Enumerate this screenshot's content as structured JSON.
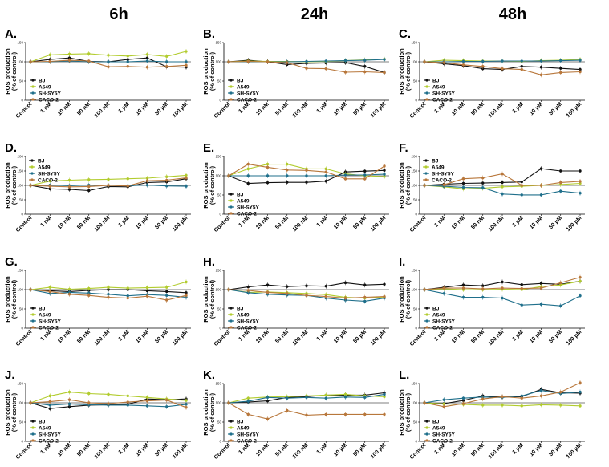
{
  "figure": {
    "column_titles": [
      "6h",
      "24h",
      "48h"
    ]
  },
  "series_meta": [
    {
      "name": "BJ",
      "color": "#111111"
    },
    {
      "name": "A549",
      "color": "#b2cc2e"
    },
    {
      "name": "SH-SY5Y",
      "color": "#1f6f8b"
    },
    {
      "name": "CACO-2",
      "color": "#b8773b"
    }
  ],
  "chart_data": [
    {
      "panel": "A.",
      "time": "6h",
      "type": "line",
      "ylabel": [
        "ROS production",
        "(% of control)"
      ],
      "ylim": [
        0,
        150
      ],
      "yticks": [
        0,
        50,
        100,
        150
      ],
      "legend": "left-bottom",
      "categories": [
        "Control",
        "1 nM",
        "10 nM",
        "50 nM",
        "100 nM",
        "1 µM",
        "10 µM",
        "50 µM",
        "100 µM"
      ],
      "series": [
        {
          "name": "BJ",
          "values": [
            100,
            106,
            110,
            101,
            100,
            106,
            110,
            87,
            86
          ]
        },
        {
          "name": "A549",
          "values": [
            100,
            118,
            120,
            121,
            117,
            115,
            119,
            114,
            127
          ]
        },
        {
          "name": "SH-SY5Y",
          "values": [
            100,
            100,
            102,
            100,
            100,
            100,
            102,
            100,
            100
          ]
        },
        {
          "name": "CACO-2",
          "values": [
            100,
            101,
            104,
            102,
            87,
            88,
            86,
            88,
            91
          ]
        }
      ]
    },
    {
      "panel": "B.",
      "time": "24h",
      "type": "line",
      "ylabel": [
        "ROS production",
        "(% of control)"
      ],
      "ylim": [
        0,
        150
      ],
      "yticks": [
        0,
        50,
        100,
        150
      ],
      "legend": "left-bottom",
      "categories": [
        "Control",
        "1 nM",
        "10 nM",
        "50 nM",
        "100 nM",
        "1 µM",
        "10 µM",
        "50 µM",
        "100 µM"
      ],
      "series": [
        {
          "name": "BJ",
          "values": [
            100,
            104,
            100,
            93,
            96,
            97,
            98,
            88,
            72
          ]
        },
        {
          "name": "A549",
          "values": [
            100,
            102,
            101,
            101,
            100,
            101,
            103,
            105,
            107
          ]
        },
        {
          "name": "SH-SY5Y",
          "values": [
            100,
            100,
            100,
            100,
            101,
            102,
            103,
            104,
            106
          ]
        },
        {
          "name": "CACO-2",
          "values": [
            100,
            101,
            100,
            98,
            83,
            82,
            73,
            74,
            72
          ]
        }
      ]
    },
    {
      "panel": "C.",
      "time": "48h",
      "type": "line",
      "ylabel": [
        "ROS production",
        "(% of control)"
      ],
      "ylim": [
        0,
        150
      ],
      "yticks": [
        0,
        50,
        100,
        150
      ],
      "legend": "left-bottom",
      "categories": [
        "Control",
        "1 nM",
        "10 nM",
        "50 nM",
        "100 nM",
        "1 µM",
        "10 µM",
        "50 µM",
        "100 µM"
      ],
      "series": [
        {
          "name": "BJ",
          "values": [
            100,
            95,
            90,
            82,
            80,
            88,
            86,
            83,
            80
          ]
        },
        {
          "name": "A549",
          "values": [
            100,
            104,
            103,
            102,
            102,
            101,
            103,
            104,
            106
          ]
        },
        {
          "name": "SH-SY5Y",
          "values": [
            100,
            100,
            101,
            101,
            102,
            102,
            102,
            103,
            104
          ]
        },
        {
          "name": "CACO-2",
          "values": [
            100,
            98,
            92,
            88,
            82,
            80,
            66,
            72,
            74
          ]
        }
      ]
    },
    {
      "panel": "D.",
      "time": "6h",
      "type": "line",
      "ylabel": [
        "ROS production",
        "(% of control)"
      ],
      "ylim": [
        0,
        200
      ],
      "yticks": [
        0,
        50,
        100,
        150,
        200
      ],
      "legend": "top-left",
      "categories": [
        "Control",
        "1 nM",
        "10 nM",
        "50 nM",
        "100 nM",
        "1 µM",
        "10 µM",
        "50 µM",
        "100 µM"
      ],
      "series": [
        {
          "name": "BJ",
          "values": [
            100,
            88,
            86,
            82,
            96,
            95,
            110,
            112,
            123
          ]
        },
        {
          "name": "A549",
          "values": [
            100,
            115,
            118,
            120,
            121,
            123,
            125,
            130,
            135
          ]
        },
        {
          "name": "SH-SY5Y",
          "values": [
            100,
            101,
            99,
            101,
            100,
            99,
            101,
            98,
            97
          ]
        },
        {
          "name": "CACO-2",
          "values": [
            100,
            97,
            95,
            96,
            100,
            98,
            116,
            118,
            126
          ]
        }
      ]
    },
    {
      "panel": "E.",
      "time": "24h",
      "type": "line",
      "ylabel": [
        "ROS production",
        "(% of control)"
      ],
      "ylim": [
        0,
        150
      ],
      "yticks": [
        0,
        50,
        100,
        150
      ],
      "legend": "left-bottom",
      "categories": [
        "Control",
        "1 nM",
        "10 nM",
        "50 nM",
        "100 nM",
        "1 µM",
        "10 µM",
        "50 µM",
        "100 µM"
      ],
      "series": [
        {
          "name": "BJ",
          "values": [
            100,
            80,
            82,
            83,
            83,
            86,
            110,
            112,
            114
          ]
        },
        {
          "name": "A549",
          "values": [
            100,
            118,
            130,
            130,
            118,
            118,
            105,
            100,
            98
          ]
        },
        {
          "name": "SH-SY5Y",
          "values": [
            100,
            100,
            100,
            100,
            100,
            100,
            102,
            102,
            104
          ]
        },
        {
          "name": "CACO-2",
          "values": [
            100,
            130,
            122,
            115,
            114,
            110,
            92,
            92,
            125
          ]
        }
      ]
    },
    {
      "panel": "F.",
      "time": "48h",
      "type": "line",
      "ylabel": [
        "ROS production",
        "(% of control)"
      ],
      "ylim": [
        0,
        200
      ],
      "yticks": [
        0,
        50,
        100,
        150,
        200
      ],
      "legend": "top-left",
      "categories": [
        "Control",
        "1 nM",
        "10 nM",
        "50 nM",
        "100 nM",
        "1 µM",
        "10 µM",
        "50 µM",
        "100 µM"
      ],
      "series": [
        {
          "name": "BJ",
          "values": [
            100,
            104,
            107,
            108,
            110,
            112,
            158,
            150,
            150
          ]
        },
        {
          "name": "A549",
          "values": [
            100,
            95,
            88,
            90,
            95,
            97,
            100,
            103,
            107
          ]
        },
        {
          "name": "SH-SY5Y",
          "values": [
            100,
            97,
            93,
            92,
            70,
            67,
            67,
            80,
            73
          ]
        },
        {
          "name": "CACO-2",
          "values": [
            100,
            102,
            123,
            126,
            140,
            100,
            100,
            110,
            114
          ]
        }
      ]
    },
    {
      "panel": "G.",
      "time": "6h",
      "type": "line",
      "ylabel": [
        "ROS production",
        "(% of control)"
      ],
      "ylim": [
        0,
        150
      ],
      "yticks": [
        0,
        50,
        100,
        150
      ],
      "legend": "left-bottom",
      "categories": [
        "Control",
        "1 nM",
        "10 nM",
        "50 nM",
        "100 nM",
        "1 µM",
        "10 µM",
        "50 µM",
        "100 µM"
      ],
      "series": [
        {
          "name": "BJ",
          "values": [
            100,
            97,
            95,
            98,
            100,
            100,
            97,
            95,
            92
          ]
        },
        {
          "name": "A549",
          "values": [
            100,
            106,
            101,
            103,
            106,
            104,
            105,
            106,
            120
          ]
        },
        {
          "name": "SH-SY5Y",
          "values": [
            100,
            90,
            93,
            91,
            88,
            84,
            87,
            85,
            80
          ]
        },
        {
          "name": "CACO-2",
          "values": [
            100,
            95,
            88,
            85,
            80,
            78,
            83,
            73,
            85
          ]
        }
      ]
    },
    {
      "panel": "H.",
      "time": "24h",
      "type": "line",
      "ylabel": [
        "ROS production",
        "(% of control)"
      ],
      "ylim": [
        0,
        150
      ],
      "yticks": [
        0,
        50,
        100,
        150
      ],
      "legend": "left-bottom",
      "categories": [
        "Control",
        "1 nM",
        "10 nM",
        "50 nM",
        "100 nM",
        "1 µM",
        "10 µM",
        "50 µM",
        "100 µM"
      ],
      "series": [
        {
          "name": "BJ",
          "values": [
            100,
            107,
            112,
            108,
            110,
            109,
            118,
            112,
            114
          ]
        },
        {
          "name": "A549",
          "values": [
            100,
            93,
            94,
            92,
            90,
            87,
            80,
            78,
            80
          ]
        },
        {
          "name": "SH-SY5Y",
          "values": [
            100,
            92,
            88,
            86,
            85,
            78,
            73,
            70,
            78
          ]
        },
        {
          "name": "CACO-2",
          "values": [
            100,
            98,
            93,
            90,
            85,
            82,
            78,
            80,
            82
          ]
        }
      ]
    },
    {
      "panel": "I.",
      "time": "48h",
      "type": "line",
      "ylabel": [
        "ROS production",
        "(% of control)"
      ],
      "ylim": [
        0,
        150
      ],
      "yticks": [
        0,
        50,
        100,
        150
      ],
      "legend": "left-bottom",
      "categories": [
        "Control",
        "1 nM",
        "10 nM",
        "50 nM",
        "100 nM",
        "1 µM",
        "10 µM",
        "50 µM",
        "100 µM"
      ],
      "series": [
        {
          "name": "BJ",
          "values": [
            100,
            106,
            112,
            110,
            120,
            113,
            116,
            114,
            122
          ]
        },
        {
          "name": "A549",
          "values": [
            100,
            102,
            100,
            100,
            101,
            100,
            108,
            112,
            122
          ]
        },
        {
          "name": "SH-SY5Y",
          "values": [
            100,
            90,
            80,
            80,
            78,
            60,
            62,
            58,
            84
          ]
        },
        {
          "name": "CACO-2",
          "values": [
            100,
            104,
            104,
            102,
            104,
            103,
            104,
            118,
            132
          ]
        }
      ]
    },
    {
      "panel": "J.",
      "time": "6h",
      "type": "line",
      "ylabel": [
        "ROS production",
        "(% of control)"
      ],
      "ylim": [
        0,
        150
      ],
      "yticks": [
        0,
        50,
        100,
        150
      ],
      "legend": "left-bottom",
      "categories": [
        "Control",
        "1 nM",
        "10 nM",
        "50 nM",
        "100 nM",
        "1 µM",
        "10 µM",
        "50 µM",
        "100 µM"
      ],
      "series": [
        {
          "name": "BJ",
          "values": [
            100,
            85,
            90,
            94,
            95,
            96,
            110,
            108,
            110
          ]
        },
        {
          "name": "A549",
          "values": [
            100,
            118,
            128,
            124,
            122,
            118,
            114,
            110,
            106
          ]
        },
        {
          "name": "SH-SY5Y",
          "values": [
            100,
            94,
            97,
            95,
            94,
            94,
            92,
            90,
            96
          ]
        },
        {
          "name": "CACO-2",
          "values": [
            100,
            103,
            108,
            100,
            98,
            102,
            105,
            107,
            88
          ]
        }
      ]
    },
    {
      "panel": "K.",
      "time": "24h",
      "type": "line",
      "ylabel": [
        "ROS production",
        "(% of control)"
      ],
      "ylim": [
        0,
        150
      ],
      "yticks": [
        0,
        50,
        100,
        150
      ],
      "legend": "left-bottom",
      "categories": [
        "Control",
        "1 nM",
        "10 nM",
        "50 nM",
        "100 nM",
        "1 µM",
        "10 µM",
        "50 µM",
        "100 µM"
      ],
      "series": [
        {
          "name": "BJ",
          "values": [
            100,
            102,
            105,
            114,
            116,
            120,
            120,
            120,
            126
          ]
        },
        {
          "name": "A549",
          "values": [
            100,
            112,
            115,
            116,
            118,
            120,
            122,
            118,
            116
          ]
        },
        {
          "name": "SH-SY5Y",
          "values": [
            100,
            104,
            114,
            112,
            114,
            112,
            115,
            114,
            122
          ]
        },
        {
          "name": "CACO-2",
          "values": [
            100,
            70,
            58,
            80,
            68,
            70,
            70,
            70,
            70
          ]
        }
      ]
    },
    {
      "panel": "L.",
      "time": "48h",
      "type": "line",
      "ylabel": [
        "ROS production",
        "(% of control)"
      ],
      "ylim": [
        0,
        150
      ],
      "yticks": [
        0,
        50,
        100,
        150
      ],
      "legend": "left-bottom",
      "categories": [
        "Control",
        "1 nM",
        "10 nM",
        "50 nM",
        "100 nM",
        "1 µM",
        "10 µM",
        "50 µM",
        "100 µM"
      ],
      "series": [
        {
          "name": "BJ",
          "values": [
            100,
            98,
            106,
            118,
            115,
            116,
            135,
            126,
            125
          ]
        },
        {
          "name": "A549",
          "values": [
            100,
            97,
            96,
            94,
            94,
            92,
            95,
            94,
            92
          ]
        },
        {
          "name": "SH-SY5Y",
          "values": [
            100,
            108,
            112,
            115,
            114,
            118,
            132,
            124,
            128
          ]
        },
        {
          "name": "CACO-2",
          "values": [
            100,
            90,
            98,
            110,
            116,
            112,
            118,
            128,
            152
          ]
        }
      ]
    }
  ]
}
